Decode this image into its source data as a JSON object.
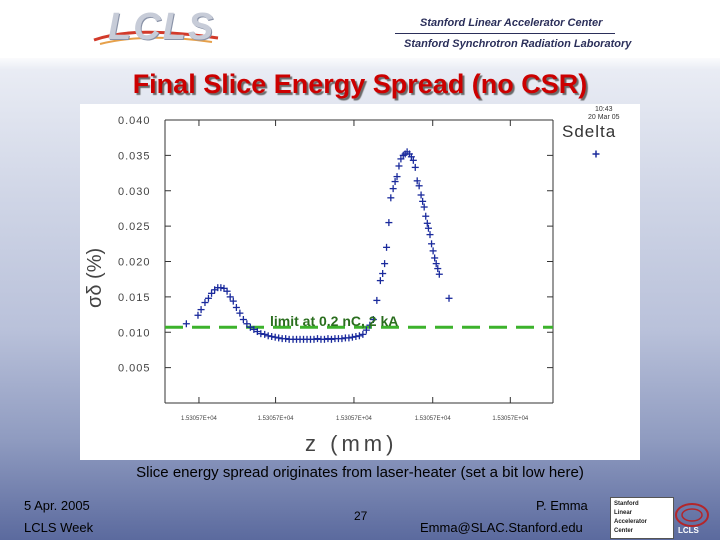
{
  "header": {
    "logo_text": "LCLS",
    "org_line1": "Stanford Linear Accelerator Center",
    "org_line2": "Stanford Synchrotron Radiation Laboratory"
  },
  "slide": {
    "title": "Final Slice Energy Spread (no CSR)",
    "caption": "Slice energy spread originates from laser-heater (set a bit low here)",
    "annotation": "limit at 0.2 nC, 2 kA",
    "stamp": "10:43\n20 Mar 05",
    "series_label": "Sdelta"
  },
  "footer": {
    "date": "5 Apr. 2005",
    "event": "LCLS Week",
    "page": "27",
    "author": "P. Emma",
    "email": "Emma@SLAC.Stanford.edu",
    "slac_logo": [
      "Stanford",
      "Linear",
      "Accelerator",
      "Center"
    ]
  },
  "colors": {
    "title": "#cc0000",
    "data": "#1a2a9c",
    "limit": "#3cb22b"
  },
  "chart_data": {
    "type": "scatter",
    "title": "Final Slice Energy Spread (no CSR)",
    "xlabel": "z (mm)",
    "ylabel": "σδ (%)",
    "legend": "Sdelta",
    "xlim": [
      0,
      1
    ],
    "ylim": [
      0,
      0.04
    ],
    "yticks": [
      0.005,
      0.01,
      0.015,
      0.02,
      0.025,
      0.03,
      0.035,
      0.04
    ],
    "ytick_labels": [
      "0.005",
      "0.010",
      "0.015",
      "0.020",
      "0.025",
      "0.030",
      "0.035",
      "0.040"
    ],
    "xticks": [
      0.0875,
      0.285,
      0.487,
      0.69,
      0.89
    ],
    "xtick_labels": [
      "1.53057E+04",
      "1.53057E+04",
      "1.53057E+04",
      "1.53057E+04",
      "1.53057E+04"
    ],
    "reference_line": {
      "y": 0.0107,
      "label": "limit at 0.2 nC, 2 kA",
      "style": "dashed"
    },
    "points": [
      [
        0.055,
        0.0112
      ],
      [
        0.085,
        0.0124
      ],
      [
        0.093,
        0.0132
      ],
      [
        0.103,
        0.0142
      ],
      [
        0.112,
        0.0148
      ],
      [
        0.12,
        0.0155
      ],
      [
        0.128,
        0.016
      ],
      [
        0.136,
        0.0163
      ],
      [
        0.144,
        0.0163
      ],
      [
        0.152,
        0.0162
      ],
      [
        0.16,
        0.0158
      ],
      [
        0.168,
        0.015
      ],
      [
        0.176,
        0.0144
      ],
      [
        0.184,
        0.0135
      ],
      [
        0.193,
        0.0127
      ],
      [
        0.202,
        0.0118
      ],
      [
        0.211,
        0.0112
      ],
      [
        0.22,
        0.0107
      ],
      [
        0.229,
        0.0104
      ],
      [
        0.238,
        0.0101
      ],
      [
        0.247,
        0.0098
      ],
      [
        0.257,
        0.0097
      ],
      [
        0.266,
        0.0095
      ],
      [
        0.275,
        0.0094
      ],
      [
        0.284,
        0.0093
      ],
      [
        0.293,
        0.0092
      ],
      [
        0.302,
        0.0091
      ],
      [
        0.311,
        0.0091
      ],
      [
        0.32,
        0.009
      ],
      [
        0.33,
        0.009
      ],
      [
        0.339,
        0.009
      ],
      [
        0.348,
        0.009
      ],
      [
        0.357,
        0.009
      ],
      [
        0.366,
        0.009
      ],
      [
        0.375,
        0.009
      ],
      [
        0.384,
        0.009
      ],
      [
        0.393,
        0.0091
      ],
      [
        0.402,
        0.009
      ],
      [
        0.411,
        0.009
      ],
      [
        0.42,
        0.0091
      ],
      [
        0.429,
        0.009
      ],
      [
        0.438,
        0.0091
      ],
      [
        0.447,
        0.0091
      ],
      [
        0.456,
        0.0091
      ],
      [
        0.465,
        0.0092
      ],
      [
        0.474,
        0.0092
      ],
      [
        0.483,
        0.0093
      ],
      [
        0.492,
        0.0094
      ],
      [
        0.501,
        0.0095
      ],
      [
        0.51,
        0.0097
      ],
      [
        0.519,
        0.0103
      ],
      [
        0.528,
        0.011
      ],
      [
        0.537,
        0.0118
      ],
      [
        0.546,
        0.0145
      ],
      [
        0.555,
        0.0173
      ],
      [
        0.561,
        0.0183
      ],
      [
        0.566,
        0.0197
      ],
      [
        0.571,
        0.022
      ],
      [
        0.577,
        0.0255
      ],
      [
        0.582,
        0.029
      ],
      [
        0.588,
        0.0303
      ],
      [
        0.593,
        0.0313
      ],
      [
        0.598,
        0.032
      ],
      [
        0.603,
        0.0335
      ],
      [
        0.608,
        0.0345
      ],
      [
        0.614,
        0.035
      ],
      [
        0.619,
        0.0352
      ],
      [
        0.624,
        0.0355
      ],
      [
        0.63,
        0.0352
      ],
      [
        0.635,
        0.0348
      ],
      [
        0.64,
        0.0343
      ],
      [
        0.645,
        0.0333
      ],
      [
        0.65,
        0.0314
      ],
      [
        0.655,
        0.0307
      ],
      [
        0.66,
        0.0294
      ],
      [
        0.664,
        0.0285
      ],
      [
        0.668,
        0.0277
      ],
      [
        0.672,
        0.0264
      ],
      [
        0.676,
        0.0254
      ],
      [
        0.679,
        0.0247
      ],
      [
        0.683,
        0.0238
      ],
      [
        0.687,
        0.0225
      ],
      [
        0.691,
        0.0215
      ],
      [
        0.695,
        0.0205
      ],
      [
        0.699,
        0.0197
      ],
      [
        0.703,
        0.019
      ],
      [
        0.707,
        0.0182
      ],
      [
        0.732,
        0.0148
      ]
    ]
  }
}
